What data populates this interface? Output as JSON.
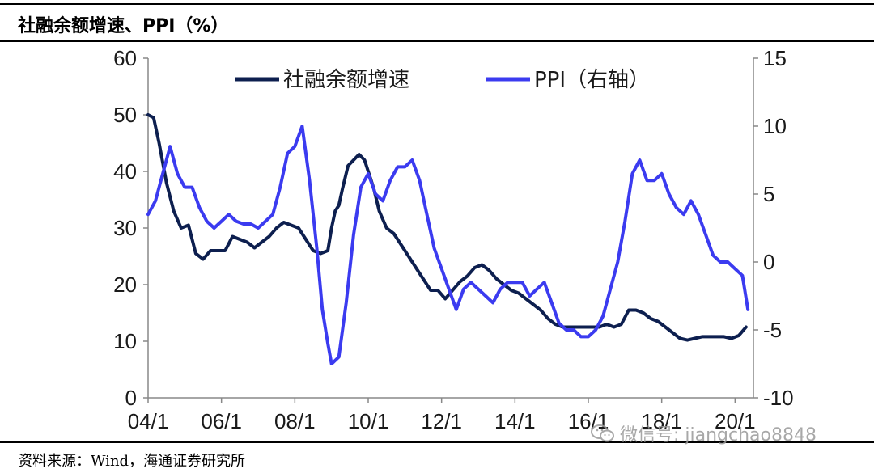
{
  "header": {
    "title": "社融余额增速、PPI（%）"
  },
  "footer": {
    "source": "资料来源：Wind，海通证券研究所"
  },
  "watermark": {
    "icon": "wechat-icon",
    "text": "微信号: jiangchao8848"
  },
  "chart_data": {
    "type": "line",
    "title": "社融余额增速、PPI（%）",
    "x_tick_labels": [
      "04/1",
      "06/1",
      "08/1",
      "10/1",
      "12/1",
      "14/1",
      "16/1",
      "18/1",
      "20/1"
    ],
    "x_ticks": [
      2004,
      2006,
      2008,
      2010,
      2012,
      2014,
      2016,
      2018,
      2020
    ],
    "xlim": [
      2004,
      2020.5
    ],
    "ylim_left": [
      0,
      60
    ],
    "y_ticks_left": [
      0,
      10,
      20,
      30,
      40,
      50,
      60
    ],
    "ylim_right": [
      -10,
      15
    ],
    "y_ticks_right": [
      -10,
      -5,
      0,
      5,
      10,
      15
    ],
    "legend_placement": "top-center",
    "grid": false,
    "series": [
      {
        "name": "社融余额增速",
        "axis": "left",
        "color": "#0d1f4f",
        "x": [
          2004.0,
          2004.15,
          2004.3,
          2004.5,
          2004.7,
          2004.9,
          2005.1,
          2005.3,
          2005.5,
          2005.7,
          2005.9,
          2006.1,
          2006.3,
          2006.5,
          2006.7,
          2006.9,
          2007.1,
          2007.3,
          2007.5,
          2007.7,
          2007.9,
          2008.1,
          2008.3,
          2008.5,
          2008.7,
          2008.9,
          2009.0,
          2009.1,
          2009.2,
          2009.3,
          2009.45,
          2009.6,
          2009.75,
          2009.9,
          2010.0,
          2010.15,
          2010.3,
          2010.5,
          2010.7,
          2010.9,
          2011.1,
          2011.3,
          2011.5,
          2011.7,
          2011.9,
          2012.1,
          2012.3,
          2012.5,
          2012.7,
          2012.9,
          2013.1,
          2013.3,
          2013.5,
          2013.7,
          2013.9,
          2014.1,
          2014.3,
          2014.5,
          2014.7,
          2014.9,
          2015.1,
          2015.3,
          2015.5,
          2015.7,
          2015.9,
          2016.1,
          2016.3,
          2016.5,
          2016.7,
          2016.9,
          2017.1,
          2017.3,
          2017.5,
          2017.7,
          2017.9,
          2018.1,
          2018.3,
          2018.5,
          2018.7,
          2018.9,
          2019.1,
          2019.3,
          2019.5,
          2019.7,
          2019.9,
          2020.1,
          2020.3
        ],
        "values": [
          50.0,
          49.5,
          45,
          38,
          33,
          30,
          30.5,
          25.5,
          24.5,
          26,
          26,
          26,
          28.5,
          28,
          27.5,
          26.5,
          27.5,
          28.5,
          30,
          31,
          30.5,
          30,
          28,
          26,
          25.5,
          26,
          30,
          33,
          34,
          37,
          41,
          42,
          43,
          42,
          40,
          37,
          33,
          30,
          29,
          27,
          25,
          23,
          21,
          19,
          19,
          17.5,
          19,
          20.5,
          21.5,
          23,
          23.5,
          22.5,
          21,
          20,
          19,
          18.5,
          17.5,
          16.5,
          15.5,
          14,
          13,
          12.5,
          12.5,
          12.5,
          12.5,
          12.5,
          12.5,
          13,
          12.5,
          13,
          15.5,
          15.5,
          15,
          14,
          13.5,
          12.5,
          11.5,
          10.5,
          10.2,
          10.5,
          10.8,
          10.8,
          10.8,
          10.8,
          10.5,
          11.0,
          12.5
        ]
      },
      {
        "name": "PPI（右轴）",
        "axis": "right",
        "color": "#3b3bf0",
        "x": [
          2004.0,
          2004.2,
          2004.4,
          2004.6,
          2004.8,
          2005.0,
          2005.2,
          2005.4,
          2005.6,
          2005.8,
          2006.0,
          2006.2,
          2006.4,
          2006.6,
          2006.8,
          2007.0,
          2007.2,
          2007.4,
          2007.6,
          2007.8,
          2008.0,
          2008.2,
          2008.4,
          2008.6,
          2008.75,
          2008.9,
          2009.0,
          2009.2,
          2009.4,
          2009.6,
          2009.8,
          2010.0,
          2010.2,
          2010.4,
          2010.6,
          2010.8,
          2011.0,
          2011.2,
          2011.4,
          2011.6,
          2011.8,
          2012.0,
          2012.2,
          2012.4,
          2012.6,
          2012.8,
          2013.0,
          2013.2,
          2013.4,
          2013.6,
          2013.8,
          2014.0,
          2014.2,
          2014.4,
          2014.6,
          2014.8,
          2015.0,
          2015.2,
          2015.4,
          2015.6,
          2015.8,
          2016.0,
          2016.2,
          2016.4,
          2016.6,
          2016.8,
          2017.0,
          2017.2,
          2017.4,
          2017.6,
          2017.8,
          2018.0,
          2018.2,
          2018.4,
          2018.6,
          2018.8,
          2019.0,
          2019.2,
          2019.4,
          2019.6,
          2019.8,
          2020.0,
          2020.2,
          2020.35
        ],
        "values": [
          3.5,
          4.5,
          6.5,
          8.5,
          6.5,
          5.5,
          5.5,
          4.0,
          3.0,
          2.5,
          3.0,
          3.5,
          3.0,
          2.8,
          2.8,
          2.5,
          3.0,
          3.5,
          5.5,
          8.0,
          8.5,
          10.0,
          6.0,
          1.0,
          -3.5,
          -6.0,
          -7.5,
          -7.0,
          -3.0,
          2.0,
          5.5,
          6.5,
          5.0,
          4.5,
          6.0,
          7.0,
          7.0,
          7.5,
          6.0,
          3.5,
          1.0,
          -0.5,
          -2.0,
          -3.5,
          -2.0,
          -1.5,
          -2.0,
          -2.5,
          -3.0,
          -2.0,
          -1.5,
          -1.5,
          -1.5,
          -2.5,
          -2.0,
          -1.5,
          -3.0,
          -4.5,
          -5.0,
          -5.0,
          -5.5,
          -5.5,
          -5.0,
          -4.0,
          -2.0,
          0.0,
          3.0,
          6.5,
          7.5,
          6.0,
          6.0,
          6.5,
          5.0,
          4.0,
          3.5,
          4.5,
          3.5,
          2.0,
          0.5,
          0.0,
          0.0,
          -0.5,
          -1.0,
          -3.5
        ]
      }
    ]
  }
}
